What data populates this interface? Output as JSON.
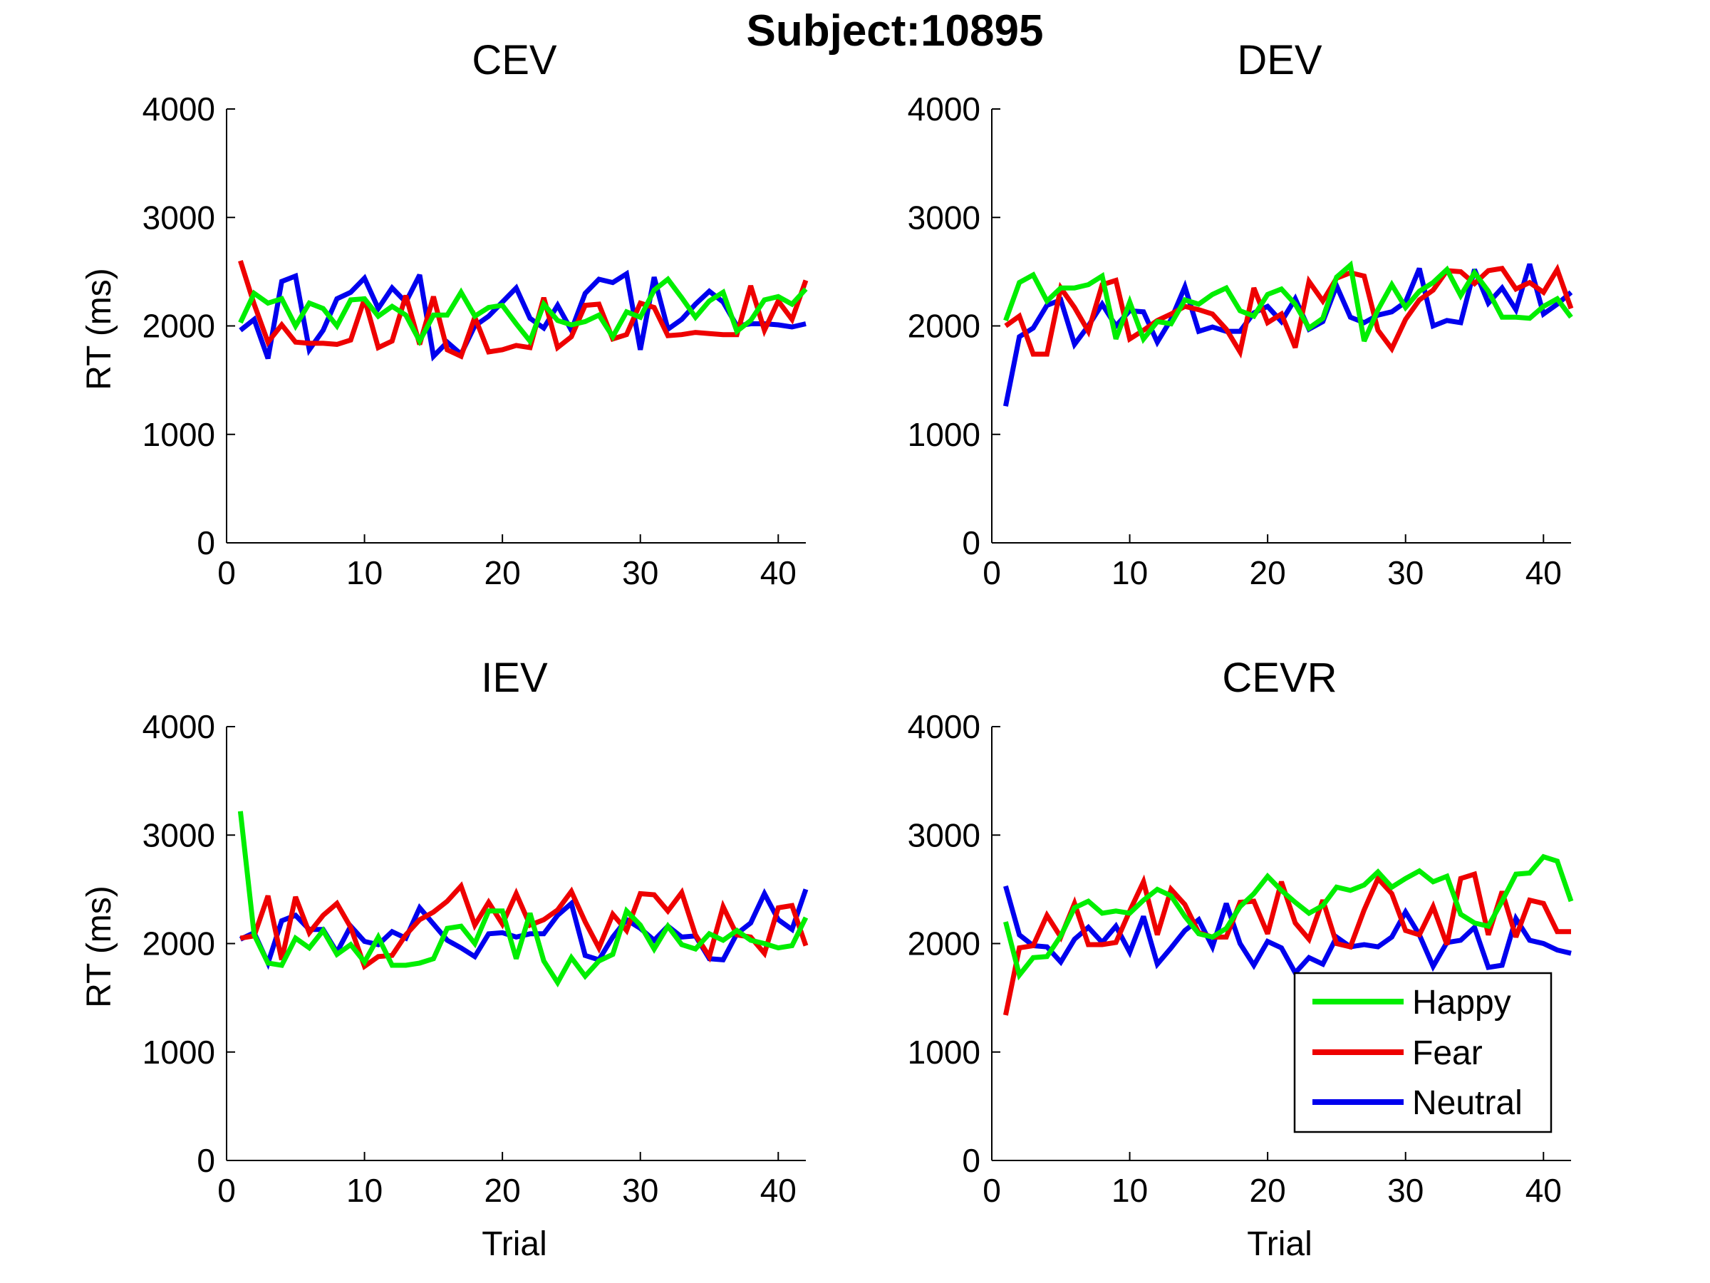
{
  "suptitle": "Subject:10895",
  "colors": {
    "Happy": "#00ee00",
    "Fear": "#ee0000",
    "Neutral": "#0000ee",
    "axis": "#000000"
  },
  "legend": {
    "location": "bottom-right of CEVR panel",
    "entries": [
      "Happy",
      "Fear",
      "Neutral"
    ]
  },
  "chart_data": [
    {
      "type": "line",
      "title": "CEV",
      "xlabel": "",
      "ylabel": "RT (ms)",
      "xlim": [
        0,
        42
      ],
      "ylim": [
        0,
        4000
      ],
      "xticks": [
        0,
        10,
        20,
        30,
        40
      ],
      "yticks": [
        0,
        1000,
        2000,
        3000,
        4000
      ],
      "x": [
        1,
        2,
        3,
        4,
        5,
        6,
        7,
        8,
        9,
        10,
        11,
        12,
        13,
        14,
        15,
        16,
        17,
        18,
        19,
        20,
        21,
        22,
        23,
        24,
        25,
        26,
        27,
        28,
        29,
        30,
        31,
        32,
        33,
        34,
        35,
        36,
        37,
        38,
        39,
        40,
        41,
        42
      ],
      "series": [
        {
          "name": "Happy",
          "values": [
            2030,
            2300,
            2210,
            2250,
            2000,
            2210,
            2160,
            2000,
            2240,
            2250,
            2090,
            2180,
            2100,
            1860,
            2100,
            2100,
            2310,
            2090,
            2170,
            2190,
            2020,
            1860,
            2200,
            2050,
            2010,
            2040,
            2100,
            1900,
            2130,
            2080,
            2330,
            2430,
            2260,
            2080,
            2230,
            2310,
            1950,
            2050,
            2240,
            2270,
            2200,
            2340
          ]
        },
        {
          "name": "Fear",
          "values": [
            2600,
            2200,
            1850,
            2010,
            1850,
            1840,
            1840,
            1830,
            1870,
            2250,
            1800,
            1860,
            2280,
            1830,
            2270,
            1780,
            1720,
            2080,
            1760,
            1780,
            1820,
            1800,
            2260,
            1800,
            1900,
            2190,
            2200,
            1880,
            1920,
            2210,
            2170,
            1910,
            1920,
            1940,
            1930,
            1920,
            1920,
            2370,
            1960,
            2230,
            2060,
            2420
          ]
        },
        {
          "name": "Neutral",
          "values": [
            1960,
            2060,
            1700,
            2410,
            2460,
            1780,
            1960,
            2250,
            2310,
            2440,
            2160,
            2350,
            2220,
            2470,
            1720,
            1850,
            1740,
            2000,
            2090,
            2220,
            2350,
            2070,
            1980,
            2190,
            1960,
            2300,
            2430,
            2400,
            2480,
            1780,
            2450,
            1970,
            2060,
            2200,
            2320,
            2220,
            2000,
            2020,
            2020,
            2010,
            1990,
            2020
          ]
        }
      ]
    },
    {
      "type": "line",
      "title": "DEV",
      "xlabel": "",
      "ylabel": "",
      "xlim": [
        0,
        42
      ],
      "ylim": [
        0,
        4000
      ],
      "xticks": [
        0,
        10,
        20,
        30,
        40
      ],
      "yticks": [
        0,
        1000,
        2000,
        3000,
        4000
      ],
      "x": [
        1,
        2,
        3,
        4,
        5,
        6,
        7,
        8,
        9,
        10,
        11,
        12,
        13,
        14,
        15,
        16,
        17,
        18,
        19,
        20,
        21,
        22,
        23,
        24,
        25,
        26,
        27,
        28,
        29,
        30,
        31,
        32,
        33,
        34,
        35,
        36,
        37,
        38,
        39,
        40,
        41,
        42
      ],
      "series": [
        {
          "name": "Happy",
          "values": [
            2050,
            2400,
            2470,
            2230,
            2350,
            2350,
            2380,
            2460,
            1880,
            2220,
            1880,
            2040,
            2020,
            2240,
            2200,
            2290,
            2350,
            2140,
            2090,
            2290,
            2340,
            2200,
            1980,
            2070,
            2450,
            2560,
            1860,
            2150,
            2380,
            2170,
            2320,
            2400,
            2520,
            2280,
            2490,
            2320,
            2080,
            2080,
            2070,
            2180,
            2250,
            2080
          ]
        },
        {
          "name": "Fear",
          "values": [
            2000,
            2090,
            1740,
            1740,
            2350,
            2170,
            1950,
            2380,
            2420,
            1880,
            1960,
            2050,
            2110,
            2180,
            2150,
            2110,
            1970,
            1760,
            2350,
            2030,
            2110,
            1800,
            2410,
            2230,
            2440,
            2490,
            2460,
            1960,
            1790,
            2060,
            2240,
            2330,
            2510,
            2500,
            2390,
            2510,
            2530,
            2340,
            2400,
            2310,
            2520,
            2160
          ]
        },
        {
          "name": "Neutral",
          "values": [
            1260,
            1900,
            1980,
            2190,
            2240,
            1830,
            2000,
            2200,
            2000,
            2140,
            2130,
            1850,
            2060,
            2360,
            1950,
            1990,
            1950,
            1950,
            2120,
            2180,
            2040,
            2250,
            1970,
            2040,
            2370,
            2080,
            2030,
            2100,
            2130,
            2220,
            2530,
            2000,
            2050,
            2030,
            2520,
            2210,
            2350,
            2150,
            2570,
            2110,
            2200,
            2310
          ]
        }
      ]
    },
    {
      "type": "line",
      "title": "IEV",
      "xlabel": "Trial",
      "ylabel": "RT (ms)",
      "xlim": [
        0,
        42
      ],
      "ylim": [
        0,
        4000
      ],
      "xticks": [
        0,
        10,
        20,
        30,
        40
      ],
      "yticks": [
        0,
        1000,
        2000,
        3000,
        4000
      ],
      "x": [
        1,
        2,
        3,
        4,
        5,
        6,
        7,
        8,
        9,
        10,
        11,
        12,
        13,
        14,
        15,
        16,
        17,
        18,
        19,
        20,
        21,
        22,
        23,
        24,
        25,
        26,
        27,
        28,
        29,
        30,
        31,
        32,
        33,
        34,
        35,
        36,
        37,
        38,
        39,
        40,
        41,
        42
      ],
      "series": [
        {
          "name": "Happy",
          "values": [
            3220,
            2080,
            1820,
            1800,
            2050,
            1960,
            2120,
            1900,
            1990,
            1830,
            2060,
            1800,
            1800,
            1820,
            1860,
            2140,
            2160,
            2000,
            2300,
            2300,
            1860,
            2280,
            1840,
            1640,
            1870,
            1700,
            1840,
            1900,
            2300,
            2170,
            1950,
            2160,
            1990,
            1950,
            2090,
            2030,
            2120,
            2030,
            2000,
            1960,
            1980,
            2240
          ]
        },
        {
          "name": "Fear",
          "values": [
            2050,
            2070,
            2440,
            1850,
            2430,
            2100,
            2260,
            2370,
            2150,
            1790,
            1880,
            1890,
            2080,
            2220,
            2290,
            2390,
            2530,
            2170,
            2380,
            2180,
            2460,
            2170,
            2220,
            2310,
            2480,
            2200,
            1960,
            2270,
            2120,
            2460,
            2450,
            2300,
            2470,
            2080,
            1880,
            2340,
            2080,
            2060,
            1910,
            2330,
            2350,
            1980
          ]
        },
        {
          "name": "Neutral",
          "values": [
            2040,
            2100,
            1820,
            2210,
            2260,
            2130,
            2130,
            1920,
            2160,
            2020,
            1990,
            2110,
            2050,
            2330,
            2180,
            2030,
            1960,
            1880,
            2090,
            2100,
            2060,
            2090,
            2090,
            2260,
            2370,
            1890,
            1850,
            2060,
            2220,
            2140,
            2030,
            2160,
            2060,
            2070,
            1860,
            1850,
            2090,
            2190,
            2460,
            2220,
            2130,
            2500
          ]
        }
      ]
    },
    {
      "type": "line",
      "title": "CEVR",
      "xlabel": "Trial",
      "ylabel": "",
      "xlim": [
        0,
        42
      ],
      "ylim": [
        0,
        4000
      ],
      "xticks": [
        0,
        10,
        20,
        30,
        40
      ],
      "yticks": [
        0,
        1000,
        2000,
        3000,
        4000
      ],
      "x": [
        1,
        2,
        3,
        4,
        5,
        6,
        7,
        8,
        9,
        10,
        11,
        12,
        13,
        14,
        15,
        16,
        17,
        18,
        19,
        20,
        21,
        22,
        23,
        24,
        25,
        26,
        27,
        28,
        29,
        30,
        31,
        32,
        33,
        34,
        35,
        36,
        37,
        38,
        39,
        40,
        41,
        42
      ],
      "series": [
        {
          "name": "Happy",
          "values": [
            2200,
            1710,
            1870,
            1880,
            2070,
            2330,
            2390,
            2280,
            2300,
            2280,
            2400,
            2500,
            2440,
            2250,
            2090,
            2060,
            2140,
            2340,
            2460,
            2620,
            2490,
            2380,
            2280,
            2350,
            2520,
            2490,
            2540,
            2660,
            2520,
            2600,
            2670,
            2570,
            2620,
            2270,
            2190,
            2160,
            2390,
            2640,
            2650,
            2800,
            2760,
            2390
          ]
        },
        {
          "name": "Fear",
          "values": [
            1340,
            1960,
            1980,
            2260,
            2060,
            2370,
            1990,
            1990,
            2010,
            2300,
            2570,
            2080,
            2500,
            2360,
            2100,
            2060,
            2060,
            2380,
            2390,
            2090,
            2570,
            2190,
            2040,
            2400,
            2000,
            1970,
            2310,
            2600,
            2460,
            2120,
            2080,
            2340,
            1990,
            2600,
            2640,
            2080,
            2480,
            2060,
            2400,
            2370,
            2110,
            2110
          ]
        },
        {
          "name": "Neutral",
          "values": [
            2530,
            2080,
            1980,
            1970,
            1830,
            2040,
            2150,
            2010,
            2160,
            1920,
            2250,
            1810,
            1960,
            2120,
            2220,
            1970,
            2370,
            2000,
            1800,
            2020,
            1960,
            1730,
            1870,
            1810,
            2060,
            1970,
            1990,
            1970,
            2060,
            2290,
            2080,
            1790,
            2010,
            2030,
            2150,
            1780,
            1800,
            2230,
            2030,
            2000,
            1940,
            1910
          ]
        }
      ]
    }
  ]
}
